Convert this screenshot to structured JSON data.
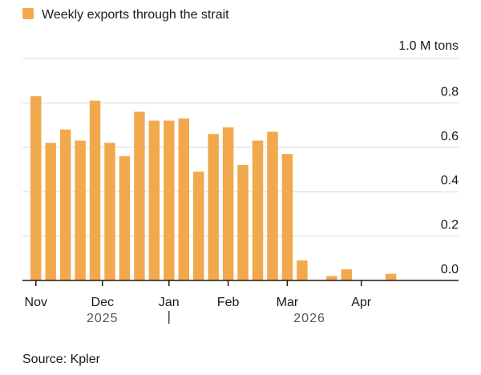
{
  "chart_data": {
    "type": "bar",
    "legend": {
      "label": "Weekly exports through the strait",
      "color": "#F2A94E",
      "placement": "top-left"
    },
    "unit_label": "1.0 M tons",
    "y_ticks": [
      {
        "value": 0.0,
        "label": "0.0"
      },
      {
        "value": 0.2,
        "label": "0.2"
      },
      {
        "value": 0.4,
        "label": "0.4"
      },
      {
        "value": 0.6,
        "label": "0.6"
      },
      {
        "value": 0.8,
        "label": "0.8"
      },
      {
        "value": 1.0,
        "label": ""
      }
    ],
    "ylim": [
      0,
      1.0
    ],
    "grid": true,
    "series": [
      {
        "color": "#F2A94E",
        "values": [
          0.83,
          0.62,
          0.68,
          0.63,
          0.81,
          0.62,
          0.56,
          0.76,
          0.72,
          0.72,
          0.73,
          0.49,
          0.66,
          0.69,
          0.52,
          0.63,
          0.67,
          0.57,
          0.09,
          0.0,
          0.02,
          0.05,
          0.0,
          0.0,
          0.03
        ]
      }
    ],
    "x_ticks": [
      {
        "label": "Nov",
        "index": 0
      },
      {
        "label": "Dec",
        "index": 4.5
      },
      {
        "label": "Jan",
        "index": 9
      },
      {
        "label": "Feb",
        "index": 13
      },
      {
        "label": "Mar",
        "index": 17
      },
      {
        "label": "Apr",
        "index": 22
      }
    ],
    "years": [
      {
        "label": "2025",
        "index": 4.5
      },
      {
        "label": "2026",
        "index": 18.5
      }
    ],
    "year_divider_index": 9
  },
  "source": "Source: Kpler"
}
